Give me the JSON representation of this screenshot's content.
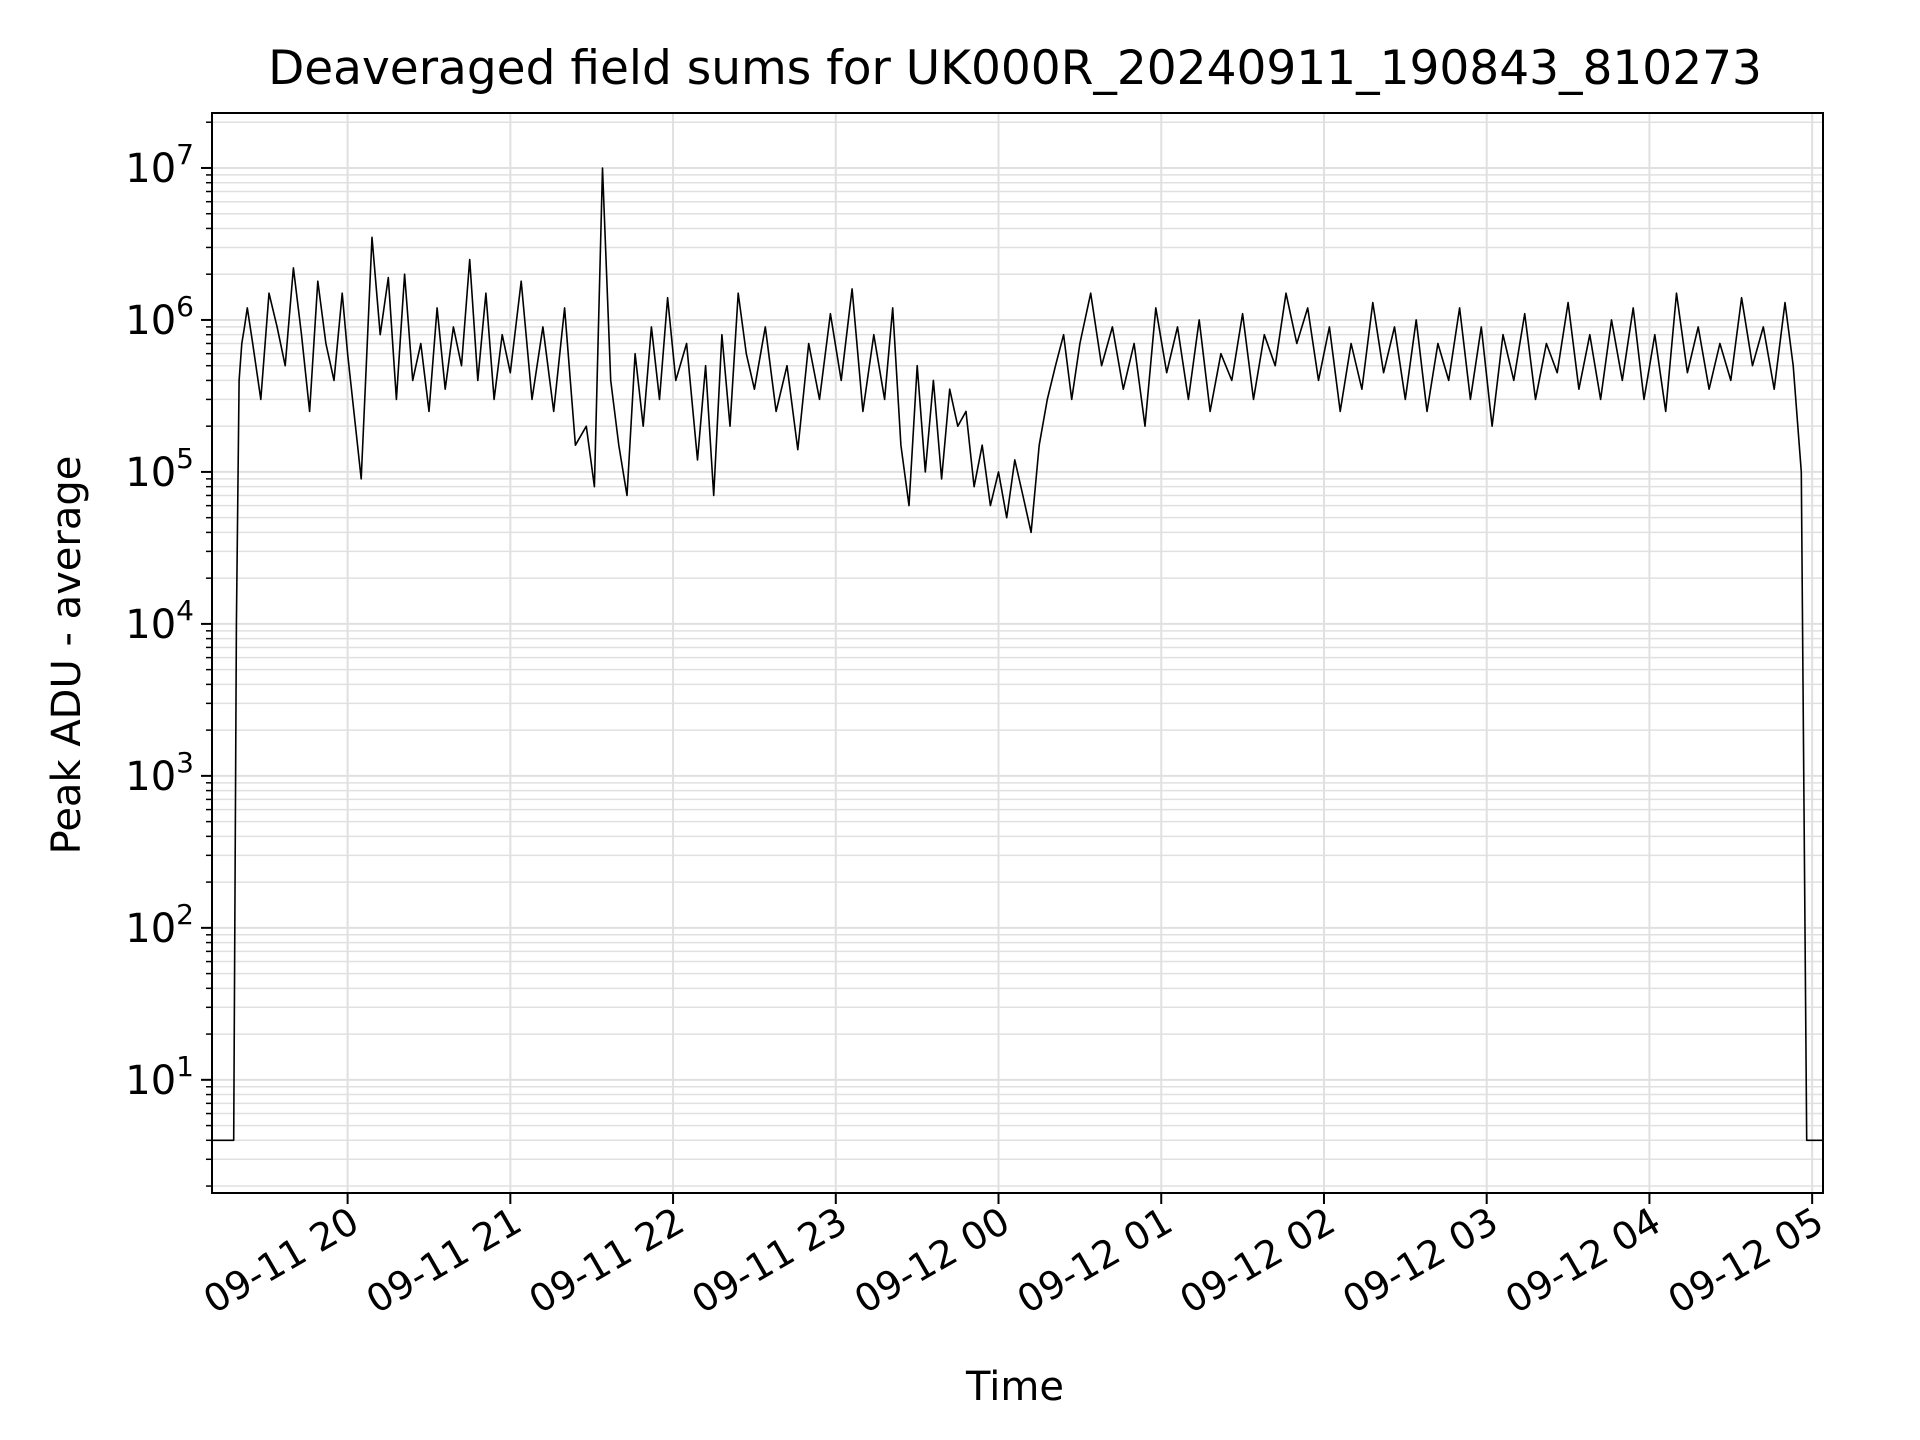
{
  "colors": {
    "line": "#000000",
    "grid": "#e0e0e0",
    "frame": "#000000",
    "background": "#ffffff"
  },
  "chart_data": {
    "type": "line",
    "title": "Deaveraged field sums for UK000R_20240911_190843_810273",
    "xlabel": "Time",
    "ylabel": "Peak ADU - average",
    "yscale": "log",
    "grid": true,
    "grid_minor": true,
    "x_range": [
      "2024-09-11 19:10",
      "2024-09-12 05:04"
    ],
    "ylim": [
      1.8,
      23000000
    ],
    "x_ticks": [
      {
        "at": "2024-09-11 20:00",
        "label": "09-11 20"
      },
      {
        "at": "2024-09-11 21:00",
        "label": "09-11 21"
      },
      {
        "at": "2024-09-11 22:00",
        "label": "09-11 22"
      },
      {
        "at": "2024-09-11 23:00",
        "label": "09-11 23"
      },
      {
        "at": "2024-09-12 00:00",
        "label": "09-12 00"
      },
      {
        "at": "2024-09-12 01:00",
        "label": "09-12 01"
      },
      {
        "at": "2024-09-12 02:00",
        "label": "09-12 02"
      },
      {
        "at": "2024-09-12 03:00",
        "label": "09-12 03"
      },
      {
        "at": "2024-09-12 04:00",
        "label": "09-12 04"
      },
      {
        "at": "2024-09-12 05:00",
        "label": "09-12 05"
      }
    ],
    "y_ticks": [
      {
        "value": 10,
        "base": "10",
        "exp": "1"
      },
      {
        "value": 100,
        "base": "10",
        "exp": "2"
      },
      {
        "value": 1000,
        "base": "10",
        "exp": "3"
      },
      {
        "value": 10000,
        "base": "10",
        "exp": "4"
      },
      {
        "value": 100000,
        "base": "10",
        "exp": "5"
      },
      {
        "value": 1000000,
        "base": "10",
        "exp": "6"
      },
      {
        "value": 10000000,
        "base": "10",
        "exp": "7"
      }
    ],
    "series": [
      {
        "x": [
          "2024-09-11 19:10",
          "2024-09-11 19:14",
          "2024-09-11 19:16",
          "2024-09-11 19:18",
          "2024-09-11 19:19",
          "2024-09-11 19:20",
          "2024-09-11 19:21",
          "2024-09-11 19:22",
          "2024-09-11 19:23",
          "2024-09-11 19:25",
          "2024-09-11 19:28",
          "2024-09-11 19:31",
          "2024-09-11 19:34",
          "2024-09-11 19:37",
          "2024-09-11 19:40",
          "2024-09-11 19:43",
          "2024-09-11 19:46",
          "2024-09-11 19:49",
          "2024-09-11 19:52",
          "2024-09-11 19:55",
          "2024-09-11 19:58",
          "2024-09-11 20:00",
          "2024-09-11 20:05",
          "2024-09-11 20:09",
          "2024-09-11 20:12",
          "2024-09-11 20:15",
          "2024-09-11 20:18",
          "2024-09-11 20:21",
          "2024-09-11 20:24",
          "2024-09-11 20:27",
          "2024-09-11 20:30",
          "2024-09-11 20:33",
          "2024-09-11 20:36",
          "2024-09-11 20:39",
          "2024-09-11 20:42",
          "2024-09-11 20:45",
          "2024-09-11 20:48",
          "2024-09-11 20:51",
          "2024-09-11 20:54",
          "2024-09-11 20:57",
          "2024-09-11 21:00",
          "2024-09-11 21:04",
          "2024-09-11 21:08",
          "2024-09-11 21:12",
          "2024-09-11 21:16",
          "2024-09-11 21:20",
          "2024-09-11 21:24",
          "2024-09-11 21:28",
          "2024-09-11 21:31",
          "2024-09-11 21:34",
          "2024-09-11 21:37",
          "2024-09-11 21:40",
          "2024-09-11 21:43",
          "2024-09-11 21:46",
          "2024-09-11 21:49",
          "2024-09-11 21:52",
          "2024-09-11 21:55",
          "2024-09-11 21:58",
          "2024-09-11 22:01",
          "2024-09-11 22:05",
          "2024-09-11 22:09",
          "2024-09-11 22:12",
          "2024-09-11 22:15",
          "2024-09-11 22:18",
          "2024-09-11 22:21",
          "2024-09-11 22:24",
          "2024-09-11 22:27",
          "2024-09-11 22:30",
          "2024-09-11 22:34",
          "2024-09-11 22:38",
          "2024-09-11 22:42",
          "2024-09-11 22:46",
          "2024-09-11 22:50",
          "2024-09-11 22:54",
          "2024-09-11 22:58",
          "2024-09-11 23:02",
          "2024-09-11 23:06",
          "2024-09-11 23:10",
          "2024-09-11 23:14",
          "2024-09-11 23:18",
          "2024-09-11 23:21",
          "2024-09-11 23:24",
          "2024-09-11 23:27",
          "2024-09-11 23:30",
          "2024-09-11 23:33",
          "2024-09-11 23:36",
          "2024-09-11 23:39",
          "2024-09-11 23:42",
          "2024-09-11 23:45",
          "2024-09-11 23:48",
          "2024-09-11 23:51",
          "2024-09-11 23:54",
          "2024-09-11 23:57",
          "2024-09-12 00:00",
          "2024-09-12 00:03",
          "2024-09-12 00:06",
          "2024-09-12 00:09",
          "2024-09-12 00:12",
          "2024-09-12 00:15",
          "2024-09-12 00:18",
          "2024-09-12 00:21",
          "2024-09-12 00:24",
          "2024-09-12 00:27",
          "2024-09-12 00:30",
          "2024-09-12 00:34",
          "2024-09-12 00:38",
          "2024-09-12 00:42",
          "2024-09-12 00:46",
          "2024-09-12 00:50",
          "2024-09-12 00:54",
          "2024-09-12 00:58",
          "2024-09-12 01:02",
          "2024-09-12 01:06",
          "2024-09-12 01:10",
          "2024-09-12 01:14",
          "2024-09-12 01:18",
          "2024-09-12 01:22",
          "2024-09-12 01:26",
          "2024-09-12 01:30",
          "2024-09-12 01:34",
          "2024-09-12 01:38",
          "2024-09-12 01:42",
          "2024-09-12 01:46",
          "2024-09-12 01:50",
          "2024-09-12 01:54",
          "2024-09-12 01:58",
          "2024-09-12 02:02",
          "2024-09-12 02:06",
          "2024-09-12 02:10",
          "2024-09-12 02:14",
          "2024-09-12 02:18",
          "2024-09-12 02:22",
          "2024-09-12 02:26",
          "2024-09-12 02:30",
          "2024-09-12 02:34",
          "2024-09-12 02:38",
          "2024-09-12 02:42",
          "2024-09-12 02:46",
          "2024-09-12 02:50",
          "2024-09-12 02:54",
          "2024-09-12 02:58",
          "2024-09-12 03:02",
          "2024-09-12 03:06",
          "2024-09-12 03:10",
          "2024-09-12 03:14",
          "2024-09-12 03:18",
          "2024-09-12 03:22",
          "2024-09-12 03:26",
          "2024-09-12 03:30",
          "2024-09-12 03:34",
          "2024-09-12 03:38",
          "2024-09-12 03:42",
          "2024-09-12 03:46",
          "2024-09-12 03:50",
          "2024-09-12 03:54",
          "2024-09-12 03:58",
          "2024-09-12 04:02",
          "2024-09-12 04:06",
          "2024-09-12 04:10",
          "2024-09-12 04:14",
          "2024-09-12 04:18",
          "2024-09-12 04:22",
          "2024-09-12 04:26",
          "2024-09-12 04:30",
          "2024-09-12 04:34",
          "2024-09-12 04:38",
          "2024-09-12 04:42",
          "2024-09-12 04:46",
          "2024-09-12 04:50",
          "2024-09-12 04:53",
          "2024-09-12 04:56",
          "2024-09-12 04:58",
          "2024-09-12 04:59",
          "2024-09-12 05:00",
          "2024-09-12 05:01",
          "2024-09-12 05:04"
        ],
        "y": [
          4,
          4,
          4,
          4,
          10000,
          400000,
          700000,
          900000,
          1200000,
          700000,
          300000,
          1500000,
          900000,
          500000,
          2200000,
          800000,
          250000,
          1800000,
          700000,
          400000,
          1500000,
          600000,
          90000,
          3500000,
          800000,
          1900000,
          300000,
          2000000,
          400000,
          700000,
          250000,
          1200000,
          350000,
          900000,
          500000,
          2500000,
          400000,
          1500000,
          300000,
          800000,
          450000,
          1800000,
          300000,
          900000,
          250000,
          1200000,
          150000,
          200000,
          80000,
          10000000,
          400000,
          150000,
          70000,
          600000,
          200000,
          900000,
          300000,
          1400000,
          400000,
          700000,
          120000,
          500000,
          70000,
          800000,
          200000,
          1500000,
          600000,
          350000,
          900000,
          250000,
          500000,
          140000,
          700000,
          300000,
          1100000,
          400000,
          1600000,
          250000,
          800000,
          300000,
          1200000,
          150000,
          60000,
          500000,
          100000,
          400000,
          90000,
          350000,
          200000,
          250000,
          80000,
          150000,
          60000,
          100000,
          50000,
          120000,
          70000,
          40000,
          150000,
          300000,
          500000,
          800000,
          300000,
          700000,
          1500000,
          500000,
          900000,
          350000,
          700000,
          200000,
          1200000,
          450000,
          900000,
          300000,
          1000000,
          250000,
          600000,
          400000,
          1100000,
          300000,
          800000,
          500000,
          1500000,
          700000,
          1200000,
          400000,
          900000,
          250000,
          700000,
          350000,
          1300000,
          450000,
          900000,
          300000,
          1000000,
          250000,
          700000,
          400000,
          1200000,
          300000,
          900000,
          200000,
          800000,
          400000,
          1100000,
          300000,
          700000,
          450000,
          1300000,
          350000,
          800000,
          300000,
          1000000,
          400000,
          1200000,
          300000,
          800000,
          250000,
          1500000,
          450000,
          900000,
          350000,
          700000,
          400000,
          1400000,
          500000,
          900000,
          350000,
          1300000,
          500000,
          100000,
          4,
          4,
          4,
          4,
          4
        ]
      }
    ]
  }
}
